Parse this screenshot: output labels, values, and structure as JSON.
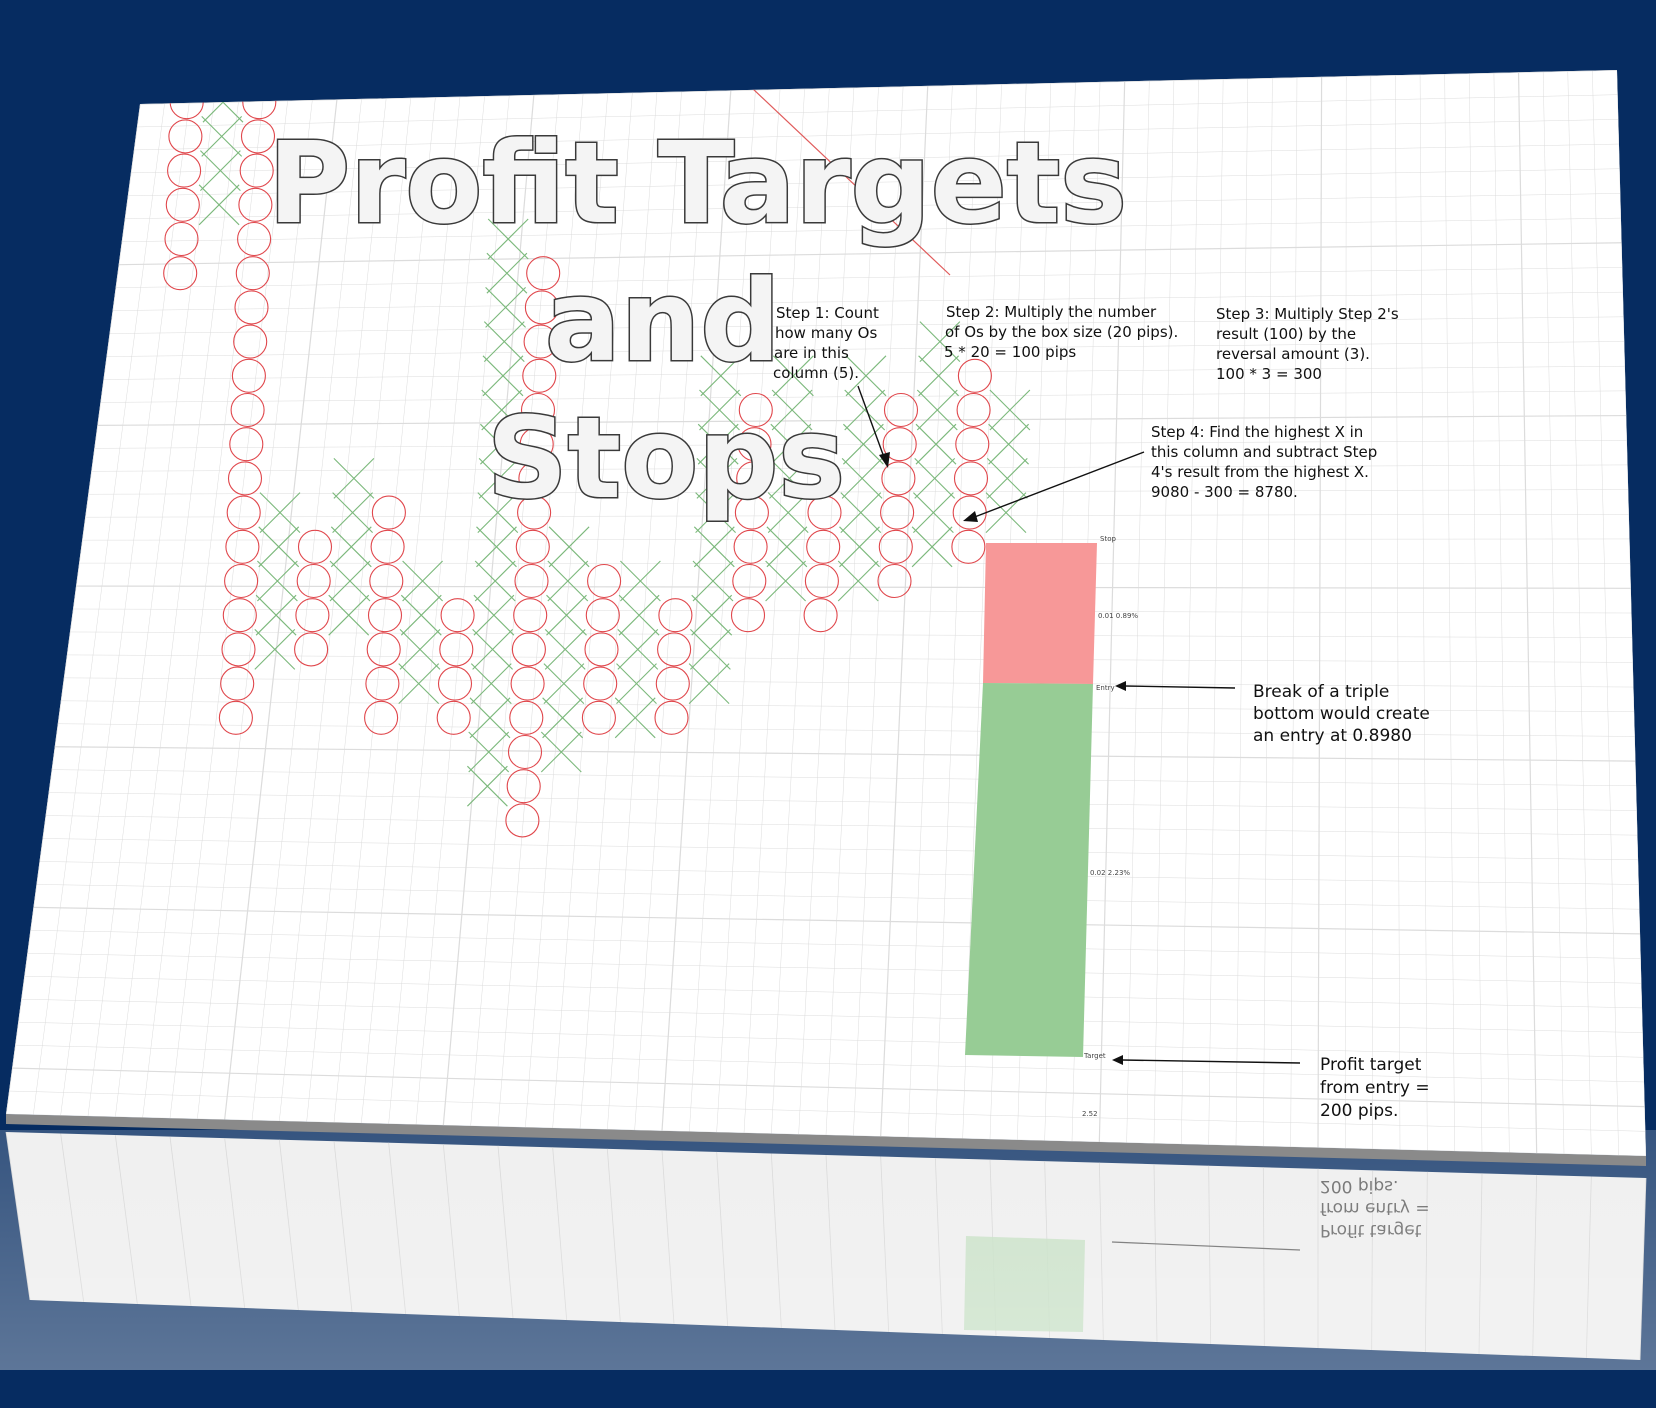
{
  "colors": {
    "frame": "#062c61",
    "grid": "#dcdcdc",
    "o_mark": "#e0474c",
    "x_mark": "#7bb87b",
    "stop_zone": "#f79898",
    "target_zone": "#97cc95",
    "arrow": "#111111"
  },
  "title": {
    "line1": "Profit Targets",
    "line2": "and",
    "line3": "Stops"
  },
  "notes": {
    "step1": [
      "Step 1: Count",
      "how many Os",
      "are in this",
      "column (5)."
    ],
    "step2": [
      "Step 2: Multiply the number",
      "of Os by the box size (20 pips).",
      "5 * 20 = 100 pips"
    ],
    "step3": [
      "Step 3: Multiply Step 2's",
      "result (100) by the",
      "reversal amount (3).",
      "100 * 3 = 300"
    ],
    "step4": [
      "Step 4: Find the highest X in",
      "this column and subtract Step",
      "4's result from the highest X.",
      "9080 - 300 = 8780."
    ],
    "entry": [
      "Break of a triple",
      "bottom would create",
      "an entry at 0.8980"
    ],
    "target": [
      "Profit target",
      "from entry =",
      "200 pips."
    ]
  },
  "position_tool": {
    "stop_label": "Stop",
    "entry_label": "Entry",
    "target_label": "Target",
    "risk_label": "0.01  0.89%",
    "reward_label": "0.02  2.23%",
    "ratio_label": "2.52"
  },
  "chart_data": {
    "type": "point-and-figure",
    "box_size_pips": 20,
    "reversal_boxes": 3,
    "highest_x": 9080,
    "stop": 8780,
    "entry": 0.898,
    "target_pips": 200,
    "columns": [
      {
        "type": "O",
        "top": 27,
        "bottom": 14
      },
      {
        "type": "X",
        "top": 21,
        "bottom": 16
      },
      {
        "type": "O",
        "top": 20,
        "bottom": 1
      },
      {
        "type": "X",
        "top": 7,
        "bottom": 3
      },
      {
        "type": "O",
        "top": 6,
        "bottom": 3
      },
      {
        "type": "X",
        "top": 8,
        "bottom": 4
      },
      {
        "type": "O",
        "top": 7,
        "bottom": 1
      },
      {
        "type": "X",
        "top": 5,
        "bottom": 2
      },
      {
        "type": "O",
        "top": 4,
        "bottom": 1
      },
      {
        "type": "X",
        "top": 15,
        "bottom": -1
      },
      {
        "type": "O",
        "top": 14,
        "bottom": -2
      },
      {
        "type": "X",
        "top": 6,
        "bottom": 0
      },
      {
        "type": "O",
        "top": 5,
        "bottom": 1
      },
      {
        "type": "X",
        "top": 5,
        "bottom": 1
      },
      {
        "type": "O",
        "top": 4,
        "bottom": 1
      },
      {
        "type": "X",
        "top": 11,
        "bottom": 2
      },
      {
        "type": "O",
        "top": 10,
        "bottom": 4
      },
      {
        "type": "X",
        "top": 11,
        "bottom": 5
      },
      {
        "type": "O",
        "top": 7,
        "bottom": 4
      },
      {
        "type": "X",
        "top": 11,
        "bottom": 5
      },
      {
        "type": "O",
        "top": 10,
        "bottom": 5
      },
      {
        "type": "X",
        "top": 12,
        "bottom": 6
      },
      {
        "type": "O",
        "top": 11,
        "bottom": 6
      },
      {
        "type": "X",
        "top": 10,
        "bottom": 7
      }
    ]
  }
}
